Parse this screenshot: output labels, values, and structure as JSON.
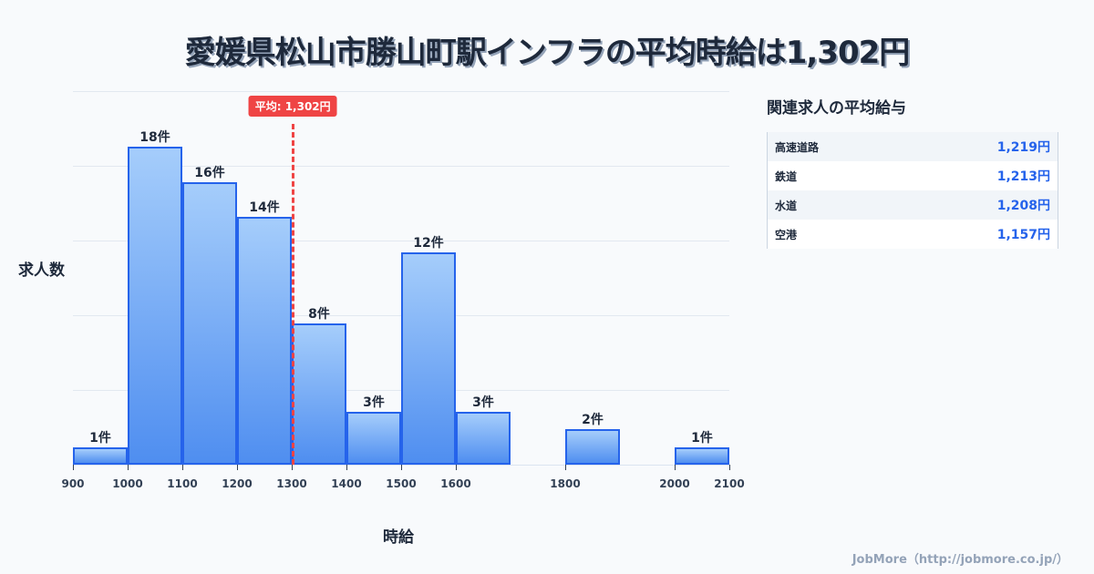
{
  "title": "愛媛県松山市勝山町駅インフラの平均時給は1,302円",
  "chart_data": {
    "type": "bar",
    "title": "愛媛県松山市勝山町駅インフラの平均時給は1,302円",
    "xlabel": "時給",
    "ylabel": "求人数",
    "bins": [
      {
        "start": 900,
        "end": 1000,
        "count": 1,
        "label": "1件"
      },
      {
        "start": 1000,
        "end": 1100,
        "count": 18,
        "label": "18件"
      },
      {
        "start": 1100,
        "end": 1200,
        "count": 16,
        "label": "16件"
      },
      {
        "start": 1200,
        "end": 1300,
        "count": 14,
        "label": "14件"
      },
      {
        "start": 1300,
        "end": 1400,
        "count": 8,
        "label": "8件"
      },
      {
        "start": 1400,
        "end": 1500,
        "count": 3,
        "label": "3件"
      },
      {
        "start": 1500,
        "end": 1600,
        "count": 12,
        "label": "12件"
      },
      {
        "start": 1600,
        "end": 1700,
        "count": 3,
        "label": "3件"
      },
      {
        "start": 1800,
        "end": 1900,
        "count": 2,
        "label": "2件"
      },
      {
        "start": 2000,
        "end": 2100,
        "count": 1,
        "label": "1件"
      }
    ],
    "categories": [
      "900-1000",
      "1000-1100",
      "1100-1200",
      "1200-1300",
      "1300-1400",
      "1400-1500",
      "1500-1600",
      "1600-1700",
      "1800-1900",
      "2000-2100"
    ],
    "values": [
      1,
      18,
      16,
      14,
      8,
      3,
      12,
      3,
      2,
      1
    ],
    "x_ticks": [
      900,
      1000,
      1100,
      1200,
      1300,
      1400,
      1500,
      1600,
      1800,
      2000,
      2100
    ],
    "xlim": [
      900,
      2100
    ],
    "ylim": [
      0,
      21
    ],
    "grid": true,
    "average": {
      "value": 1302,
      "label": "平均: 1,302円",
      "color": "#ef4444"
    },
    "bar_color": "#2563eb"
  },
  "sidebar": {
    "title": "関連求人の平均給与",
    "rows": [
      {
        "name": "高速道路",
        "value": "1,219円"
      },
      {
        "name": "鉄道",
        "value": "1,213円"
      },
      {
        "name": "水道",
        "value": "1,208円"
      },
      {
        "name": "空港",
        "value": "1,157円"
      }
    ]
  },
  "footer": "JobMore（http://jobmore.co.jp/）"
}
